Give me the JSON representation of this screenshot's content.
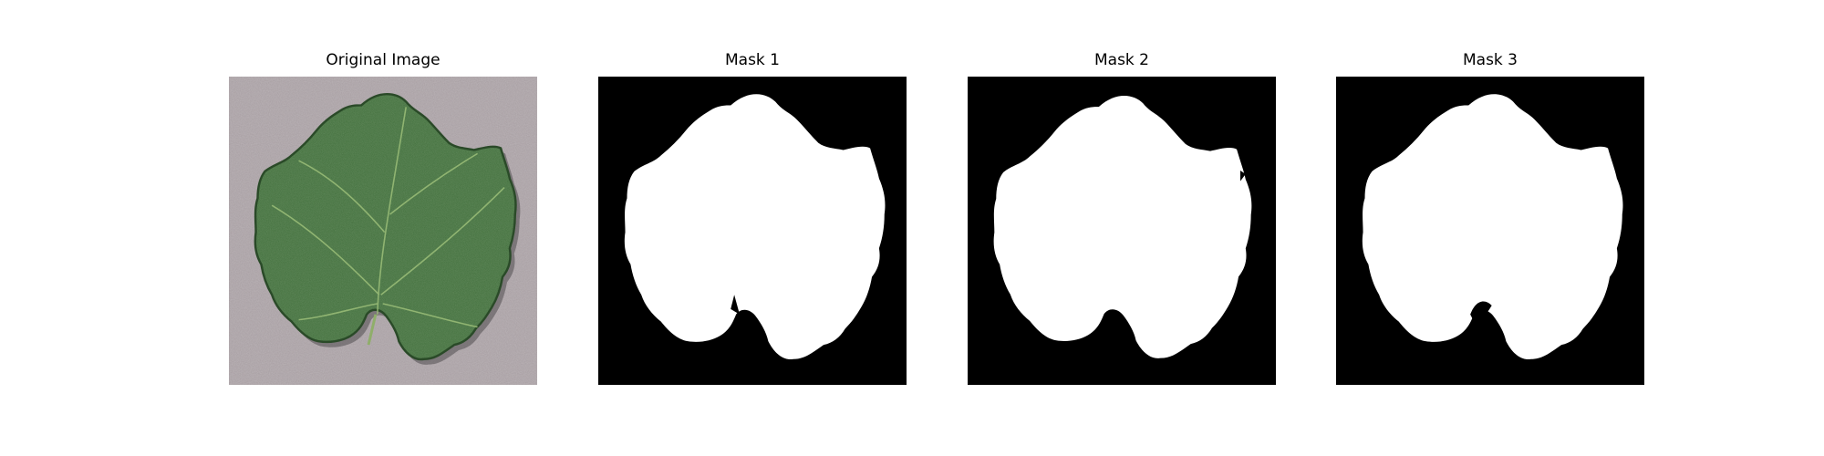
{
  "panels": [
    {
      "title": "Original Image",
      "kind": "photo"
    },
    {
      "title": "Mask 1",
      "kind": "mask"
    },
    {
      "title": "Mask 2",
      "kind": "mask"
    },
    {
      "title": "Mask 3",
      "kind": "mask"
    }
  ],
  "colors": {
    "background": "#ffffff",
    "mask_background": "#000000",
    "mask_foreground": "#ffffff",
    "photo_surface": "#a79ea2",
    "leaf_green": "#3f6d3a",
    "leaf_dark": "#2a4a28",
    "leaf_vein": "#9cbf79"
  }
}
